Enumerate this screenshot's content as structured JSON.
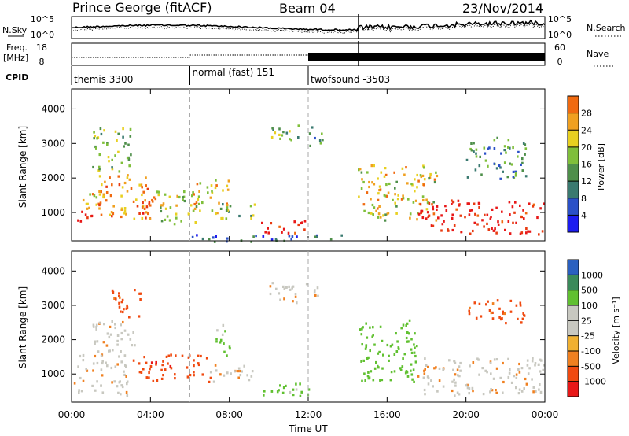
{
  "header": {
    "station": "Prince George (fitACF)",
    "beam": "Beam 04",
    "date": "23/Nov/2014"
  },
  "summary_labels": {
    "nsky": "N.Sky",
    "nsearch": "N.Search",
    "freq": "Freq.",
    "freq_unit": "[MHz]",
    "nave": "Nave",
    "cpid": "CPID",
    "noise_left_ticks": [
      "10^5",
      "10^0"
    ],
    "noise_right_ticks": [
      "10^5",
      "10^0"
    ],
    "freq_ticks": [
      "18",
      "8"
    ],
    "nave_ticks": [
      "60",
      "0"
    ]
  },
  "cpid_segments": [
    {
      "start_hour": 0,
      "end_hour": 6,
      "label": "themis 3300"
    },
    {
      "start_hour": 6,
      "end_hour": 12,
      "label": "normal (fast) 151"
    },
    {
      "start_hour": 12,
      "end_hour": 24,
      "label": "twofsound -3503"
    }
  ],
  "colors": {
    "power_scale": [
      "#1c1cf0",
      "#2a50c8",
      "#3a7a70",
      "#4e8f4a",
      "#7fbf3a",
      "#e8d020",
      "#f0a020",
      "#f06a10",
      "#e83a10",
      "#e81818"
    ],
    "velocity_scale": [
      "#1430c8",
      "#2a60c0",
      "#3a8a5a",
      "#60c030",
      "#c8c8c0",
      "#c8c8c0",
      "#f0b030",
      "#f08020",
      "#f04a10",
      "#e81818"
    ]
  },
  "chart_data": [
    {
      "type": "heatmap",
      "name": "power",
      "ylabel": "Slant Range [km]",
      "xlabel": "Time UT",
      "x_ticks": [
        "00:00",
        "04:00",
        "08:00",
        "12:00",
        "16:00",
        "20:00",
        "00:00"
      ],
      "y_ticks": [
        "1000",
        "2000",
        "3000",
        "4000"
      ],
      "xlim_hours": [
        0,
        24
      ],
      "ylim_km": [
        180,
        4580
      ],
      "colorbar_label": "Power [dB]",
      "colorbar_ticks": [
        "4",
        "8",
        "12",
        "16",
        "20",
        "24",
        "28"
      ],
      "vlines_hours": [
        6,
        12
      ],
      "regions": [
        {
          "t0": 0.1,
          "t1": 1.0,
          "r0": 650,
          "r1": 1100,
          "level": 0.93
        },
        {
          "t0": 0.2,
          "t1": 1.5,
          "r0": 1100,
          "r1": 1600,
          "level": 0.62
        },
        {
          "t0": 1.3,
          "t1": 3.8,
          "r0": 850,
          "r1": 2200,
          "level": 0.68
        },
        {
          "t0": 1.0,
          "t1": 3.0,
          "r0": 2200,
          "r1": 3500,
          "level": 0.42
        },
        {
          "t0": 3.2,
          "t1": 4.3,
          "r0": 800,
          "r1": 1800,
          "level": 0.75
        },
        {
          "t0": 4.3,
          "t1": 6.5,
          "r0": 700,
          "r1": 1700,
          "level": 0.48
        },
        {
          "t0": 6.0,
          "t1": 8.0,
          "r0": 1000,
          "r1": 2000,
          "level": 0.58
        },
        {
          "t0": 7.5,
          "t1": 9.5,
          "r0": 850,
          "r1": 1300,
          "level": 0.45
        },
        {
          "t0": 9.5,
          "t1": 11.8,
          "r0": 380,
          "r1": 800,
          "level": 0.96
        },
        {
          "t0": 10.0,
          "t1": 11.5,
          "r0": 3100,
          "r1": 3700,
          "level": 0.38
        },
        {
          "t0": 12.0,
          "t1": 12.8,
          "r0": 2900,
          "r1": 3500,
          "level": 0.32
        },
        {
          "t0": 14.5,
          "t1": 18.5,
          "r0": 800,
          "r1": 2400,
          "level": 0.56
        },
        {
          "t0": 17.5,
          "t1": 23.9,
          "r0": 400,
          "r1": 1400,
          "level": 0.95
        },
        {
          "t0": 20.0,
          "t1": 23.0,
          "r0": 2000,
          "r1": 3200,
          "level": 0.32
        },
        {
          "t0": 6.0,
          "t1": 14.0,
          "r0": 180,
          "r1": 380,
          "level": 0.22
        }
      ]
    },
    {
      "type": "heatmap",
      "name": "velocity",
      "ylabel": "Slant Range [km]",
      "xlabel": "Time UT",
      "x_ticks": [
        "00:00",
        "04:00",
        "08:00",
        "12:00",
        "16:00",
        "20:00",
        "00:00"
      ],
      "y_ticks": [
        "1000",
        "2000",
        "3000",
        "4000"
      ],
      "xlim_hours": [
        0,
        24
      ],
      "ylim_km": [
        180,
        4580
      ],
      "colorbar_label": "Velocity [m s⁻¹]",
      "colorbar_ticks": [
        "1000",
        "500",
        "100",
        "25",
        "-25",
        "-100",
        "-500",
        "-1000"
      ],
      "vlines_hours": [
        6,
        12
      ],
      "regions": [
        {
          "t0": 0.1,
          "t1": 2.8,
          "r0": 400,
          "r1": 1600,
          "vel": 0
        },
        {
          "t0": 1.0,
          "t1": 3.3,
          "r0": 1600,
          "r1": 2600,
          "vel": 0
        },
        {
          "t0": 2.0,
          "t1": 3.5,
          "r0": 2600,
          "r1": 3500,
          "vel": -150
        },
        {
          "t0": 3.0,
          "t1": 4.3,
          "r0": 800,
          "r1": 1600,
          "vel": -450
        },
        {
          "t0": 4.5,
          "t1": 7.0,
          "r0": 800,
          "r1": 1600,
          "vel": -450
        },
        {
          "t0": 7.0,
          "t1": 9.5,
          "r0": 800,
          "r1": 1300,
          "vel": 0
        },
        {
          "t0": 7.3,
          "t1": 8.0,
          "r0": 1500,
          "r1": 2600,
          "vel": 150
        },
        {
          "t0": 9.5,
          "t1": 12.0,
          "r0": 350,
          "r1": 800,
          "vel": 150
        },
        {
          "t0": 10.0,
          "t1": 12.5,
          "r0": 3100,
          "r1": 3700,
          "vel": 0
        },
        {
          "t0": 14.5,
          "t1": 17.5,
          "r0": 800,
          "r1": 2600,
          "vel": 400
        },
        {
          "t0": 17.5,
          "t1": 23.9,
          "r0": 400,
          "r1": 1500,
          "vel": 0
        },
        {
          "t0": 20.0,
          "t1": 23.0,
          "r0": 2500,
          "r1": 3200,
          "vel": -150
        }
      ]
    }
  ]
}
